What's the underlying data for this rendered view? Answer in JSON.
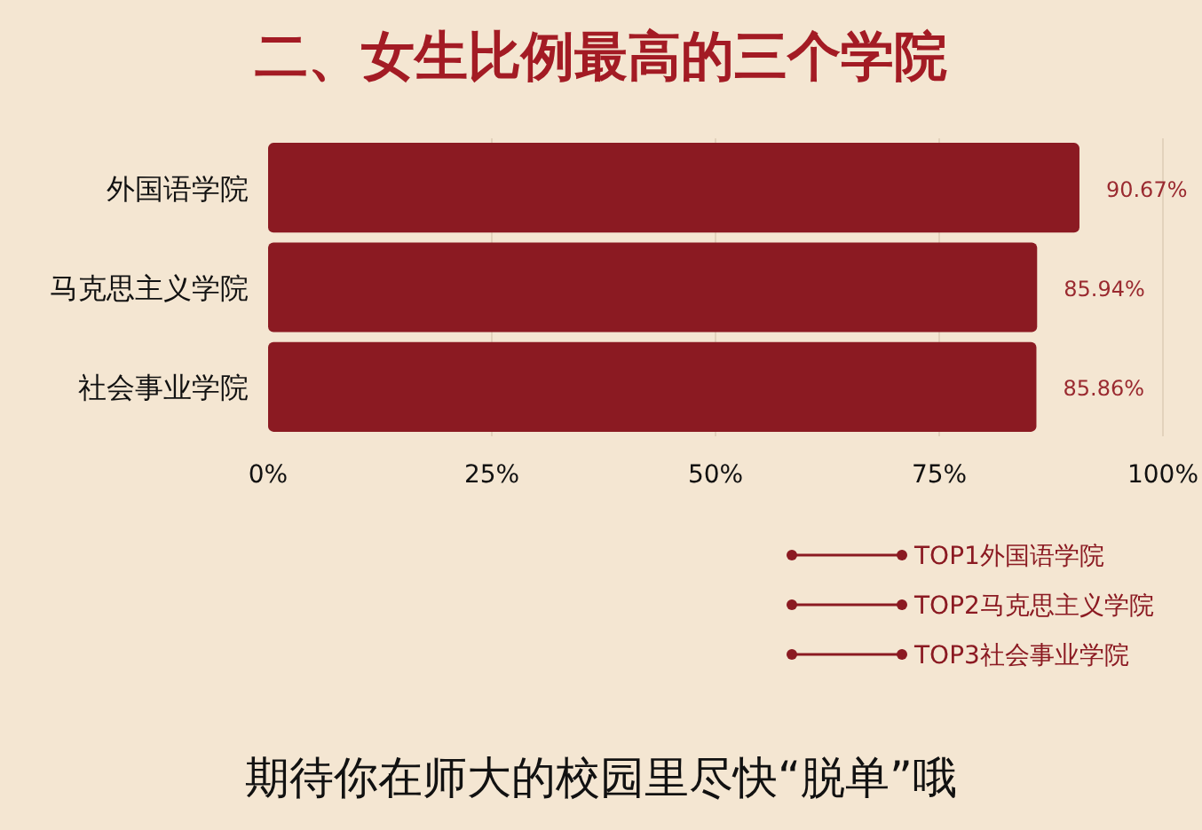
{
  "chart_data": {
    "type": "bar",
    "orientation": "horizontal",
    "title": "二、女生比例最高的三个学院",
    "categories": [
      "外国语学院",
      "马克思主义学院",
      "社会事业学院"
    ],
    "values": [
      90.67,
      85.94,
      85.86
    ],
    "color": "#8b1a22",
    "value_labels": [
      "90.67%",
      "85.94%",
      "85.86%"
    ],
    "xlim": [
      0,
      100
    ],
    "xticks": [
      {
        "value": 0,
        "label": "0%"
      },
      {
        "value": 25,
        "label": "25%"
      },
      {
        "value": 50,
        "label": "50%"
      },
      {
        "value": 75,
        "label": "75%"
      },
      {
        "value": 100,
        "label": "100%"
      }
    ],
    "grid": "x",
    "annotations": [
      "TOP1外国语学院",
      "TOP2马克思主义学院",
      "TOP3社会事业学院",
      "期待你在师大的校园里尽快“脱单”哦"
    ]
  }
}
